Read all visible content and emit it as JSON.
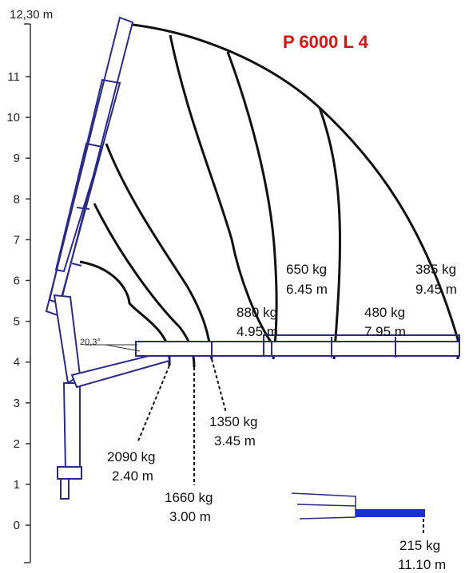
{
  "title": "P 6000 L 4",
  "axis": {
    "top_label": "12,30 m",
    "ticks": [
      "11",
      "10",
      "9",
      "8",
      "7",
      "6",
      "5",
      "4",
      "3",
      "2",
      "1",
      "0"
    ]
  },
  "angle_label": "20,3°",
  "colors": {
    "title": "#e01010",
    "crane": "#2a2a8c",
    "crane_fill": "#ffffff",
    "extension": "#1a2fd0",
    "curves": "#111111",
    "axis": "#333333"
  },
  "load_labels": [
    {
      "kg": "2090 kg",
      "m": "2.40 m"
    },
    {
      "kg": "1660 kg",
      "m": "3.00 m"
    },
    {
      "kg": "1350 kg",
      "m": "3.45 m"
    },
    {
      "kg": "880 kg",
      "m": "4.95 m"
    },
    {
      "kg": "650 kg",
      "m": "6.45 m"
    },
    {
      "kg": "480 kg",
      "m": "7.95 m"
    },
    {
      "kg": "385 kg",
      "m": "9.45 m"
    },
    {
      "kg": "215 kg",
      "m": "11.10 m"
    }
  ]
}
